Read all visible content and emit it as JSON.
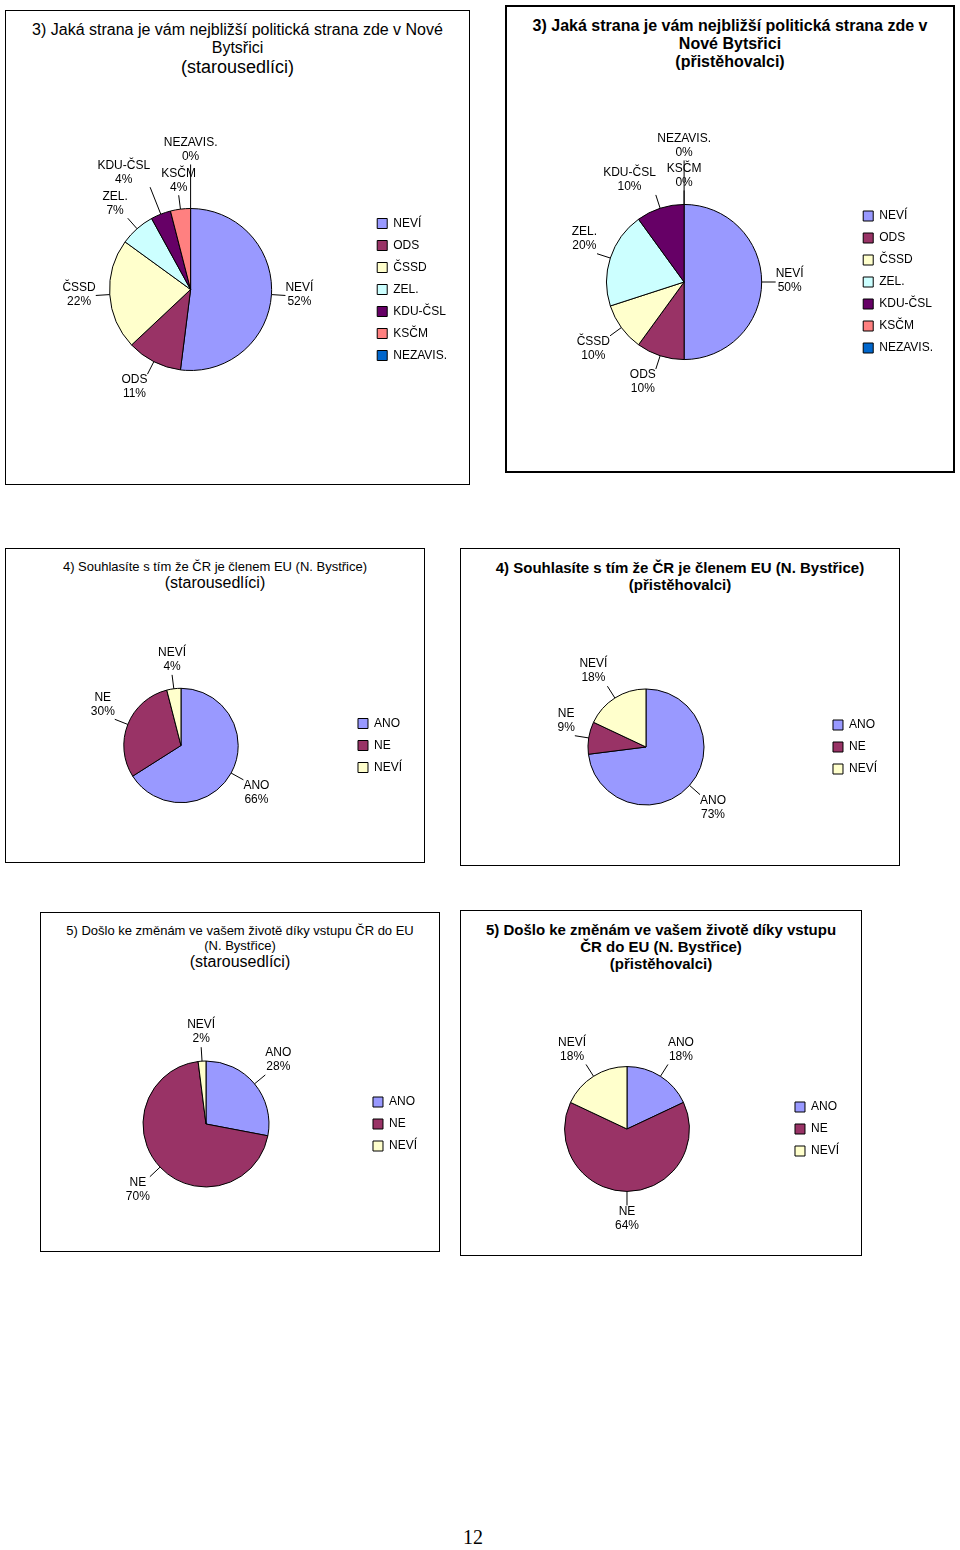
{
  "chart_data": [
    {
      "type": "pie",
      "title": "3) Jaká strana je vám nejbližší politická strana zde v Nové Bytsřici",
      "subtitle": "(starousedlíci)",
      "categories": [
        "NEVÍ",
        "ODS",
        "ČSSD",
        "ZEL.",
        "KDU-ČSL",
        "KSČM",
        "NEZAVIS."
      ],
      "values": [
        52,
        11,
        22,
        7,
        4,
        4,
        0
      ],
      "value_labels": [
        "52%",
        "11%",
        "22%",
        "7%",
        "4%",
        "4%",
        "0%"
      ],
      "colors": [
        "#9999ff",
        "#993366",
        "#ffffcc",
        "#ccffff",
        "#660066",
        "#ff8080",
        "#0066cc"
      ],
      "legend": "right",
      "data_labels": true
    },
    {
      "type": "pie",
      "title": "3) Jaká strana je vám nejbližší politická strana zde v Nové Bytsřici",
      "subtitle": "(přistěhovalci)",
      "categories": [
        "NEVÍ",
        "ODS",
        "ČSSD",
        "ZEL.",
        "KDU-ČSL",
        "KSČM",
        "NEZAVIS."
      ],
      "values": [
        50,
        10,
        10,
        20,
        10,
        0,
        0
      ],
      "value_labels": [
        "50%",
        "10%",
        "10%",
        "20%",
        "10%",
        "0%",
        "0%"
      ],
      "colors": [
        "#9999ff",
        "#993366",
        "#ffffcc",
        "#ccffff",
        "#660066",
        "#ff8080",
        "#0066cc"
      ],
      "legend": "right",
      "data_labels": true
    },
    {
      "type": "pie",
      "title": "4) Souhlasíte s tím že ČR je členem EU (N. Bystřice)",
      "subtitle": "(starousedlíci)",
      "categories": [
        "ANO",
        "NE",
        "NEVÍ"
      ],
      "values": [
        66,
        30,
        4
      ],
      "value_labels": [
        "66%",
        "30%",
        "4%"
      ],
      "colors": [
        "#9999ff",
        "#993366",
        "#ffffcc"
      ],
      "legend": "right",
      "data_labels": true
    },
    {
      "type": "pie",
      "title": "4) Souhlasíte s tím že ČR je členem EU (N. Bystřice)",
      "subtitle": "(přistěhovalci)",
      "categories": [
        "ANO",
        "NE",
        "NEVÍ"
      ],
      "values": [
        73,
        9,
        18
      ],
      "value_labels": [
        "73%",
        "9%",
        "18%"
      ],
      "colors": [
        "#9999ff",
        "#993366",
        "#ffffcc"
      ],
      "legend": "right",
      "data_labels": true
    },
    {
      "type": "pie",
      "title": "5) Došlo ke změnám ve vašem životě díky vstupu ČR do EU (N. Bystřice)",
      "subtitle": "(starousedlíci)",
      "categories": [
        "ANO",
        "NE",
        "NEVÍ"
      ],
      "values": [
        28,
        70,
        2
      ],
      "value_labels": [
        "28%",
        "70%",
        "2%"
      ],
      "colors": [
        "#9999ff",
        "#993366",
        "#ffffcc"
      ],
      "legend": "right",
      "data_labels": true
    },
    {
      "type": "pie",
      "title": "5) Došlo ke změnám ve vašem životě díky vstupu ČR do EU (N. Bystřice)",
      "subtitle": "(přistěhovalci)",
      "categories": [
        "ANO",
        "NE",
        "NEVÍ"
      ],
      "values": [
        18,
        64,
        18
      ],
      "value_labels": [
        "18%",
        "64%",
        "18%"
      ],
      "colors": [
        "#9999ff",
        "#993366",
        "#ffffcc"
      ],
      "legend": "right",
      "data_labels": true
    }
  ],
  "footer": "12"
}
